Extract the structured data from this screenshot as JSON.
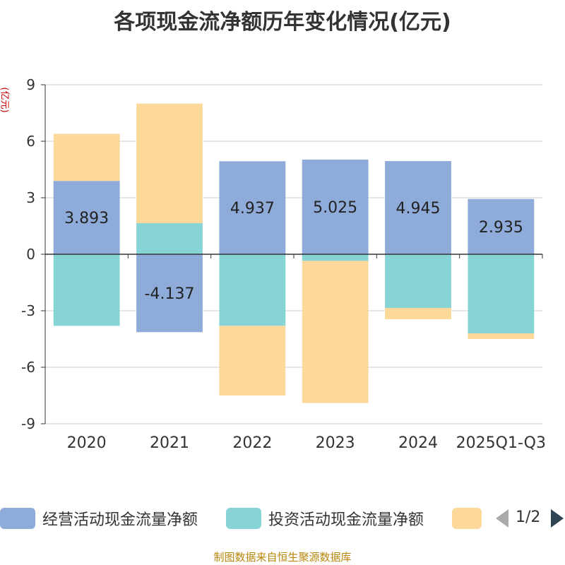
{
  "chart_data": {
    "type": "bar",
    "stacked": true,
    "title": "各项现金流净额历年变化情况(亿元)",
    "ylabel": "(亿元)",
    "ylim": [
      -9,
      9
    ],
    "yticks": [
      9,
      6,
      3,
      0,
      -3,
      -6,
      -9
    ],
    "categories": [
      "2020",
      "2021",
      "2022",
      "2023",
      "2024",
      "2025Q1-Q3"
    ],
    "series": [
      {
        "name": "经营活动现金流量净额",
        "color": "#8eabd9",
        "values": [
          3.893,
          -4.137,
          4.937,
          5.025,
          4.945,
          2.935
        ],
        "labels": [
          "3.893",
          "-4.137",
          "4.937",
          "5.025",
          "4.945",
          "2.935"
        ]
      },
      {
        "name": "投资活动现金流量净额",
        "color": "#86d4d6",
        "values": [
          -3.8,
          1.65,
          -3.8,
          -0.35,
          -2.85,
          -4.2
        ]
      },
      {
        "name": "",
        "color": "#fdd89b",
        "values": [
          2.5,
          6.35,
          -3.7,
          -7.55,
          -0.6,
          -0.3
        ]
      }
    ],
    "grid": true,
    "legend_position": "bottom"
  },
  "legend": {
    "page": "1/2"
  },
  "source": "制图数据来自恒生聚源数据库"
}
